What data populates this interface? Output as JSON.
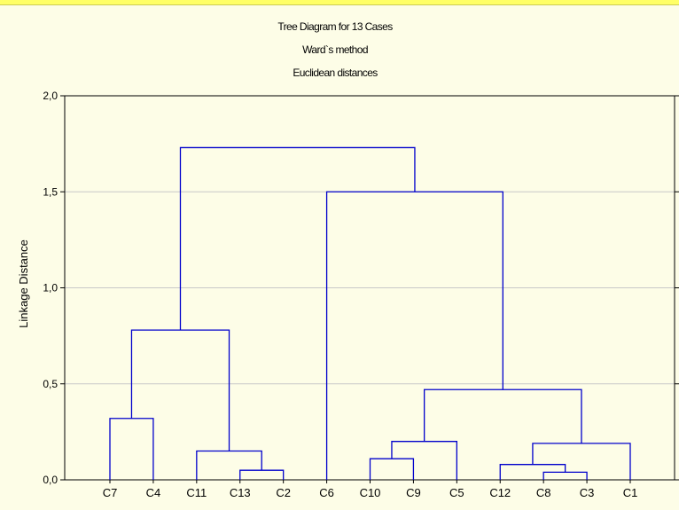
{
  "chart_data": {
    "type": "dendrogram",
    "title": "Tree Diagram for 13 Cases",
    "subtitle": "Ward`s method",
    "subtitle2": "Euclidean distances",
    "ylabel": "Linkage Distance",
    "xlabel": "",
    "ylim": [
      0,
      2
    ],
    "y_ticks": [
      "0,0",
      "0,5",
      "1,0",
      "1,5",
      "2,0"
    ],
    "y_tick_values": [
      0,
      0.5,
      1.0,
      1.5,
      2.0
    ],
    "grid": true,
    "leaves": [
      "C7",
      "C4",
      "C11",
      "C13",
      "C2",
      "C6",
      "C10",
      "C9",
      "C5",
      "C12",
      "C8",
      "C3",
      "C1"
    ],
    "merges": [
      {
        "left": "C7",
        "right": "C4",
        "height": 0.32
      },
      {
        "left": "C13",
        "right": "C2",
        "height": 0.05
      },
      {
        "left": "C11",
        "right": "C13+C2",
        "height": 0.15
      },
      {
        "left": "C7+C4",
        "right": "C11+C13+C2",
        "height": 0.78
      },
      {
        "left": "C10",
        "right": "C9",
        "height": 0.11
      },
      {
        "left": "C10+C9",
        "right": "C5",
        "height": 0.2
      },
      {
        "left": "C8",
        "right": "C3",
        "height": 0.04
      },
      {
        "left": "C12",
        "right": "C8+C3",
        "height": 0.08
      },
      {
        "left": "C12+C8+C3",
        "right": "C1",
        "height": 0.19
      },
      {
        "left": "C10+C9+C5",
        "right": "C12+C8+C3+C1",
        "height": 0.47
      },
      {
        "left": "C6",
        "right": "C10+C9+C5+C12+C8+C3+C1",
        "height": 1.5
      },
      {
        "left": "C7+C4+C11+C13+C2",
        "right": "C6+C10+C9+C5+C12+C8+C3+C1",
        "height": 1.73
      }
    ],
    "line_color": "#0000cc",
    "grid_color": "#c8c8c8"
  }
}
